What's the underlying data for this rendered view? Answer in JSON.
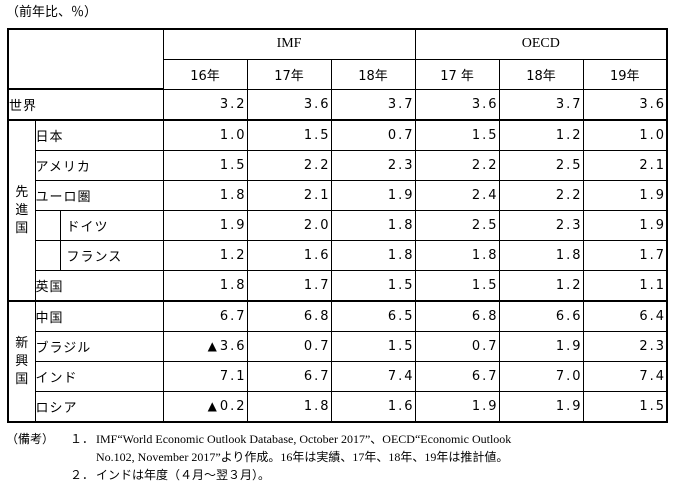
{
  "unit": "（前年比、％）",
  "sources": [
    "IMF",
    "OECD"
  ],
  "years": [
    "16年",
    "17年",
    "18年",
    "17 年",
    "18年",
    "19年"
  ],
  "groups": {
    "advanced": [
      "先",
      "進",
      "国"
    ],
    "emerging": [
      "新",
      "興",
      "国"
    ]
  },
  "rows": [
    {
      "label": "世界",
      "values": [
        "3.2",
        "3.6",
        "3.7",
        "3.6",
        "3.7",
        "3.6"
      ]
    },
    {
      "label": "日本",
      "values": [
        "1.0",
        "1.5",
        "0.7",
        "1.5",
        "1.2",
        "1.0"
      ]
    },
    {
      "label": "アメリカ",
      "values": [
        "1.5",
        "2.2",
        "2.3",
        "2.2",
        "2.5",
        "2.1"
      ]
    },
    {
      "label": "ユーロ圏",
      "values": [
        "1.8",
        "2.1",
        "1.9",
        "2.4",
        "2.2",
        "1.9"
      ]
    },
    {
      "label": "ドイツ",
      "values": [
        "1.9",
        "2.0",
        "1.8",
        "2.5",
        "2.3",
        "1.9"
      ]
    },
    {
      "label": "フランス",
      "values": [
        "1.2",
        "1.6",
        "1.8",
        "1.8",
        "1.8",
        "1.7"
      ]
    },
    {
      "label": "英国",
      "values": [
        "1.8",
        "1.7",
        "1.5",
        "1.5",
        "1.2",
        "1.1"
      ]
    },
    {
      "label": "中国",
      "values": [
        "6.7",
        "6.8",
        "6.5",
        "6.8",
        "6.6",
        "6.4"
      ]
    },
    {
      "label": "ブラジル",
      "values": [
        "3.6",
        "0.7",
        "1.5",
        "0.7",
        "1.9",
        "2.3"
      ],
      "neg_mark": "▲"
    },
    {
      "label": "インド",
      "values": [
        "7.1",
        "6.7",
        "7.4",
        "6.7",
        "7.0",
        "7.4"
      ]
    },
    {
      "label": "ロシア",
      "values": [
        "0.2",
        "1.8",
        "1.6",
        "1.9",
        "1.9",
        "1.5"
      ],
      "neg_mark": "▲"
    }
  ],
  "notes": {
    "heading": "（備考）",
    "items": [
      {
        "num": "１．",
        "line1": "IMF“World Economic Outlook Database, October 2017”、OECD“Economic Outlook",
        "line2": "No.102, November 2017”より作成。16年は実績、17年、18年、19年は推計値。"
      },
      {
        "num": "２．",
        "line1": "インドは年度（４月～翌３月）。"
      }
    ]
  }
}
